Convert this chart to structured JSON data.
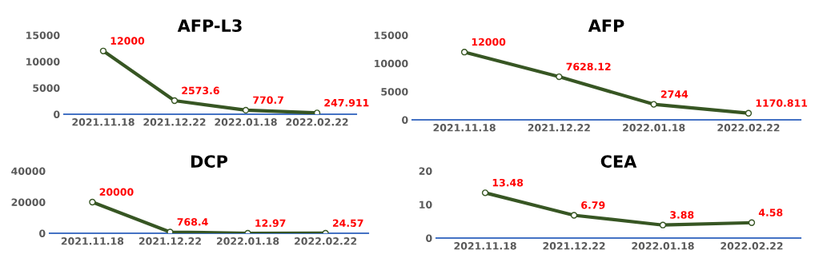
{
  "chart_data": [
    {
      "type": "line",
      "title": "AFP-L3",
      "categories": [
        "2021.11.18",
        "2021.12.22",
        "2022.01.18",
        "2022.02.22"
      ],
      "series": [
        {
          "color": "#375623",
          "values": [
            12000,
            2573.6,
            770.7,
            247.911
          ]
        }
      ],
      "ylim": [
        0,
        15000
      ],
      "yticks": [
        0,
        5000,
        10000,
        15000
      ],
      "data_labels": true,
      "marker": "circle",
      "grid": false,
      "legend": false
    },
    {
      "type": "line",
      "title": "AFP",
      "categories": [
        "2021.11.18",
        "2021.12.22",
        "2022.01.18",
        "2022.02.22"
      ],
      "series": [
        {
          "color": "#375623",
          "values": [
            12000,
            7628.12,
            2744,
            1170.811
          ]
        }
      ],
      "ylim": [
        0,
        15000
      ],
      "yticks": [
        0,
        5000,
        10000,
        15000
      ],
      "data_labels": true,
      "marker": "circle",
      "grid": false,
      "legend": false
    },
    {
      "type": "line",
      "title": "DCP",
      "categories": [
        "2021.11.18",
        "2021.12.22",
        "2022.01.18",
        "2022.02.22"
      ],
      "series": [
        {
          "color": "#375623",
          "values": [
            20000,
            768.4,
            12.97,
            24.57
          ]
        }
      ],
      "ylim": [
        0,
        40000
      ],
      "yticks": [
        0,
        20000,
        40000
      ],
      "data_labels": true,
      "marker": "circle",
      "grid": false,
      "legend": false
    },
    {
      "type": "line",
      "title": "CEA",
      "categories": [
        "2021.11.18",
        "2021.12.22",
        "2022.01.18",
        "2022.02.22"
      ],
      "series": [
        {
          "color": "#375623",
          "values": [
            13.48,
            6.79,
            3.88,
            4.58
          ]
        }
      ],
      "ylim": [
        0,
        20
      ],
      "yticks": [
        0,
        10,
        20
      ],
      "data_labels": true,
      "marker": "circle",
      "grid": false,
      "legend": false
    }
  ]
}
